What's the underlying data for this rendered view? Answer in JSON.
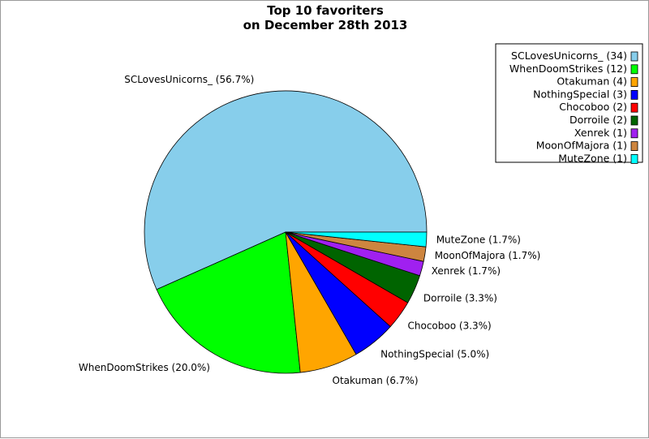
{
  "chart_data": {
    "type": "pie",
    "title_lines": [
      "Top 10 favoriters",
      "on December 28th 2013"
    ],
    "slices": [
      {
        "name": "SCLovesUnicorns_",
        "count": 34,
        "percent_label": "SCLovesUnicorns_ (56.7%)",
        "legend_label": "SCLovesUnicorns_ (34)",
        "color": "#87ceeb"
      },
      {
        "name": "WhenDoomStrikes",
        "count": 12,
        "percent_label": "WhenDoomStrikes (20.0%)",
        "legend_label": "WhenDoomStrikes (12)",
        "color": "#00ff00"
      },
      {
        "name": "Otakuman",
        "count": 4,
        "percent_label": "Otakuman (6.7%)",
        "legend_label": "Otakuman (4)",
        "color": "#ffa500"
      },
      {
        "name": "NothingSpecial",
        "count": 3,
        "percent_label": "NothingSpecial (5.0%)",
        "legend_label": "NothingSpecial (3)",
        "color": "#0000ff"
      },
      {
        "name": "Chocoboo",
        "count": 2,
        "percent_label": "Chocoboo (3.3%)",
        "legend_label": "Chocoboo (2)",
        "color": "#ff0000"
      },
      {
        "name": "Dorroile",
        "count": 2,
        "percent_label": "Dorroile (3.3%)",
        "legend_label": "Dorroile (2)",
        "color": "#006400"
      },
      {
        "name": "Xenrek",
        "count": 1,
        "percent_label": "Xenrek (1.7%)",
        "legend_label": "Xenrek (1)",
        "color": "#a020f0"
      },
      {
        "name": "MoonOfMajora",
        "count": 1,
        "percent_label": "MoonOfMajora (1.7%)",
        "legend_label": "MoonOfMajora (1)",
        "color": "#cd853f"
      },
      {
        "name": "MuteZone",
        "count": 1,
        "percent_label": "MuteZone (1.7%)",
        "legend_label": "MuteZone (1)",
        "color": "#00ffff"
      }
    ],
    "start_angle_deg": 0,
    "direction": "counterclockwise",
    "legend_position": "top-right"
  }
}
